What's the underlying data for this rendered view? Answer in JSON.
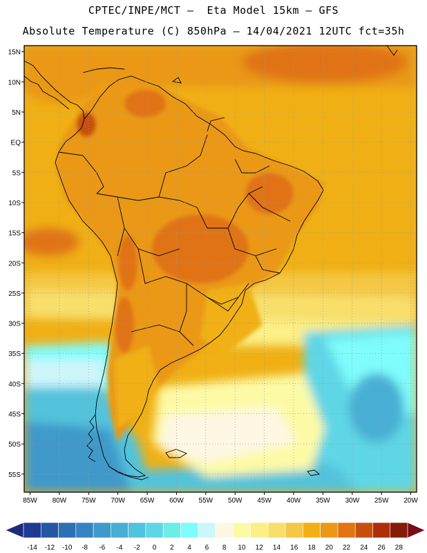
{
  "header": {
    "line1": "CPTEC/INPE/MCT –  Eta Model 15km – GFS",
    "line2": "Absolute Temperature (C) 850hPa – 14/04/2021 12UTC fct=35h"
  },
  "map": {
    "lon_range": [
      -86,
      -19
    ],
    "lat_range": [
      -58,
      16
    ],
    "lon_ticks": [
      {
        "v": -85,
        "label": "85W"
      },
      {
        "v": -80,
        "label": "80W"
      },
      {
        "v": -75,
        "label": "75W"
      },
      {
        "v": -70,
        "label": "70W"
      },
      {
        "v": -65,
        "label": "65W"
      },
      {
        "v": -60,
        "label": "60W"
      },
      {
        "v": -55,
        "label": "55W"
      },
      {
        "v": -50,
        "label": "50W"
      },
      {
        "v": -45,
        "label": "45W"
      },
      {
        "v": -40,
        "label": "40W"
      },
      {
        "v": -35,
        "label": "35W"
      },
      {
        "v": -30,
        "label": "30W"
      },
      {
        "v": -25,
        "label": "25W"
      },
      {
        "v": -20,
        "label": "20W"
      }
    ],
    "lat_ticks": [
      {
        "v": 15,
        "label": "15N"
      },
      {
        "v": 10,
        "label": "10N"
      },
      {
        "v": 5,
        "label": "5N"
      },
      {
        "v": 0,
        "label": "EQ"
      },
      {
        "v": -5,
        "label": "5S"
      },
      {
        "v": -10,
        "label": "10S"
      },
      {
        "v": -15,
        "label": "15S"
      },
      {
        "v": -20,
        "label": "20S"
      },
      {
        "v": -25,
        "label": "25S"
      },
      {
        "v": -30,
        "label": "30S"
      },
      {
        "v": -35,
        "label": "35S"
      },
      {
        "v": -40,
        "label": "40S"
      },
      {
        "v": -45,
        "label": "45S"
      },
      {
        "v": -50,
        "label": "50S"
      },
      {
        "v": -55,
        "label": "55S"
      }
    ],
    "grid": "dotted"
  },
  "colorbar": {
    "labels": [
      "-14",
      "-12",
      "-10",
      "-8",
      "-6",
      "-4",
      "-2",
      "0",
      "2",
      "4",
      "6",
      "8",
      "10",
      "12",
      "14",
      "16",
      "18",
      "20",
      "22",
      "24",
      "26",
      "28"
    ],
    "colors": [
      "#1f3a93",
      "#2556a3",
      "#2c6fb3",
      "#3584bf",
      "#3f99c9",
      "#48aed3",
      "#52c3dc",
      "#5fd6e6",
      "#6dece8",
      "#7ffcfc",
      "#cdf6fb",
      "#fdf7e4",
      "#fdfaa6",
      "#fbef86",
      "#f8df6c",
      "#f4c844",
      "#f0b015",
      "#ea9816",
      "#e07312",
      "#c8500f",
      "#ad2f0a",
      "#851b0a"
    ],
    "low_color": "#1a2c7a",
    "high_color": "#7a0c17"
  }
}
